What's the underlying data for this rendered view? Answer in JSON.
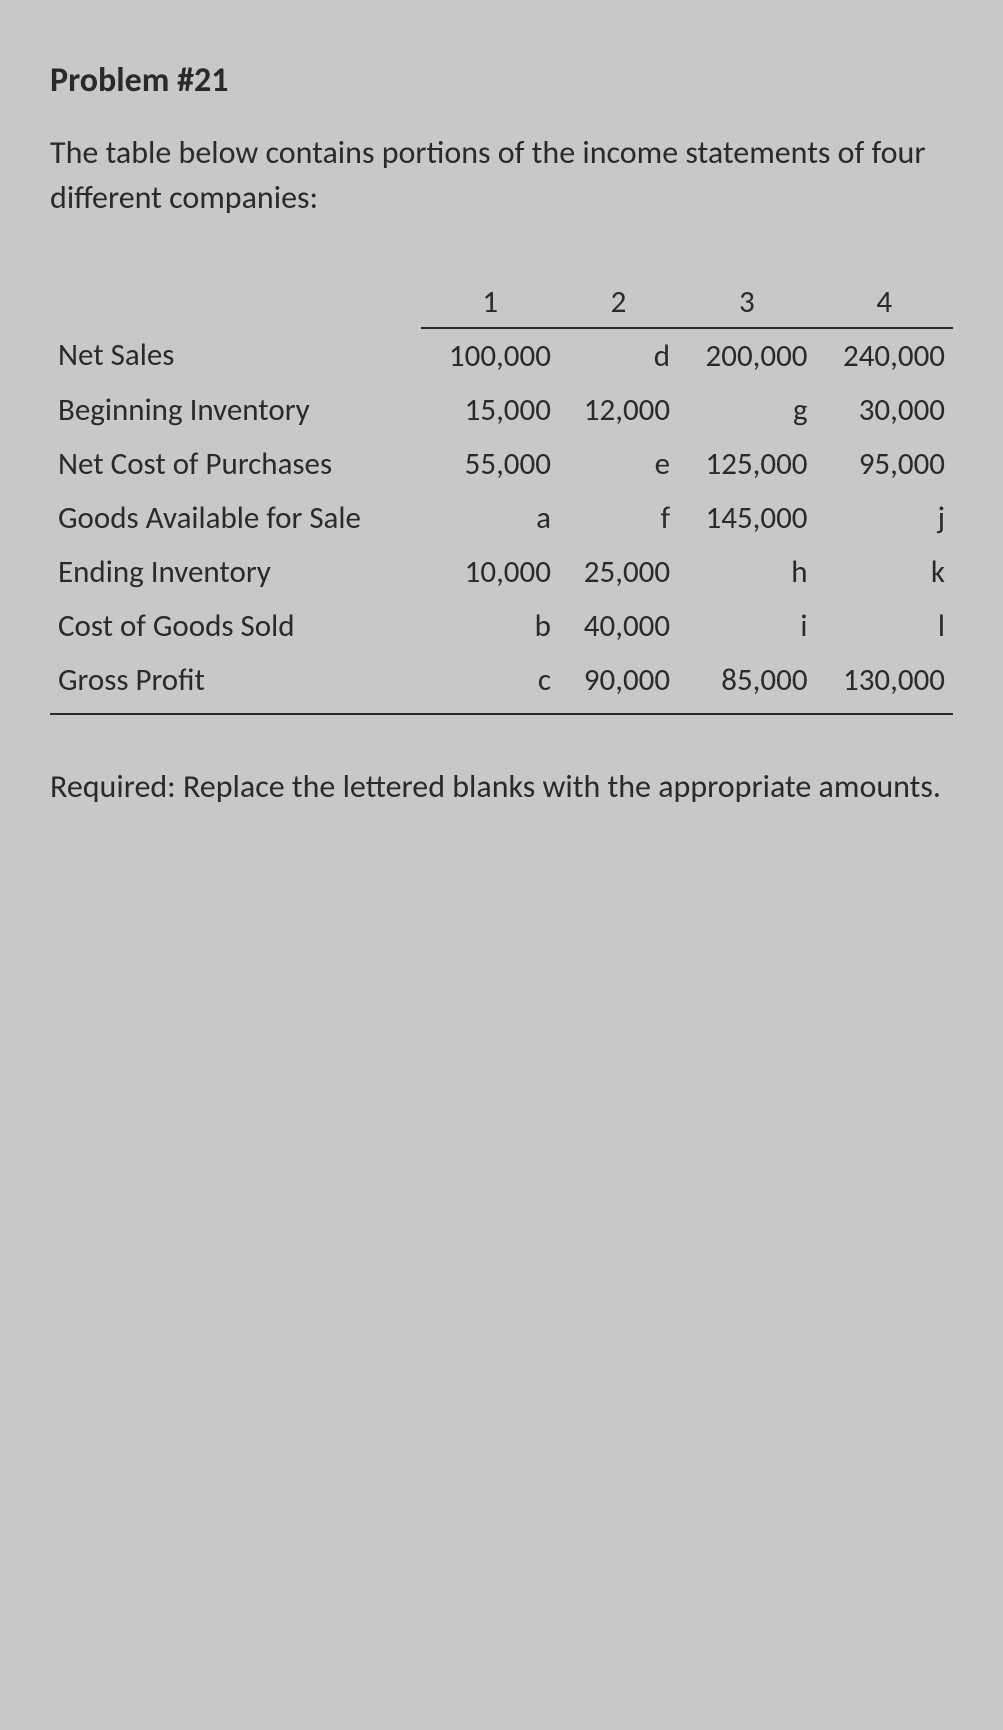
{
  "problem": {
    "number": "Problem #21",
    "intro": "The table below contains portions of the income statements of four different companies:"
  },
  "table": {
    "columns": [
      "",
      "1",
      "2",
      "3",
      "4"
    ],
    "rows": [
      {
        "label": "Net Sales",
        "values": [
          "100,000",
          "d",
          "200,000",
          "240,000"
        ]
      },
      {
        "label": "Beginning Inventory",
        "values": [
          "15,000",
          "12,000",
          "g",
          "30,000"
        ]
      },
      {
        "label": "Net Cost of Purchases",
        "values": [
          "55,000",
          "e",
          "125,000",
          "95,000"
        ]
      },
      {
        "label": "Goods Available for Sale",
        "values": [
          "a",
          "f",
          "145,000",
          "j"
        ]
      },
      {
        "label": "Ending Inventory",
        "values": [
          "10,000",
          "25,000",
          "h",
          "k"
        ]
      },
      {
        "label": "Cost of Goods Sold",
        "values": [
          "b",
          "40,000",
          "i",
          "l"
        ]
      },
      {
        "label": "Gross Profit",
        "values": [
          "c",
          "90,000",
          "85,000",
          "130,000"
        ]
      }
    ],
    "colWidths": [
      "44%",
      "14%",
      "14%",
      "14%",
      "14%"
    ]
  },
  "required": {
    "label": "Required:",
    "text": "Replace the lettered blanks with the appropriate amounts."
  },
  "styling": {
    "background_color": "#c8c8ca",
    "text_color": "#2a2a2a",
    "border_color": "#2a2a2a",
    "font_family": "Calibri",
    "header_fontsize": 34,
    "body_fontsize": 32,
    "table_fontsize": 31
  }
}
